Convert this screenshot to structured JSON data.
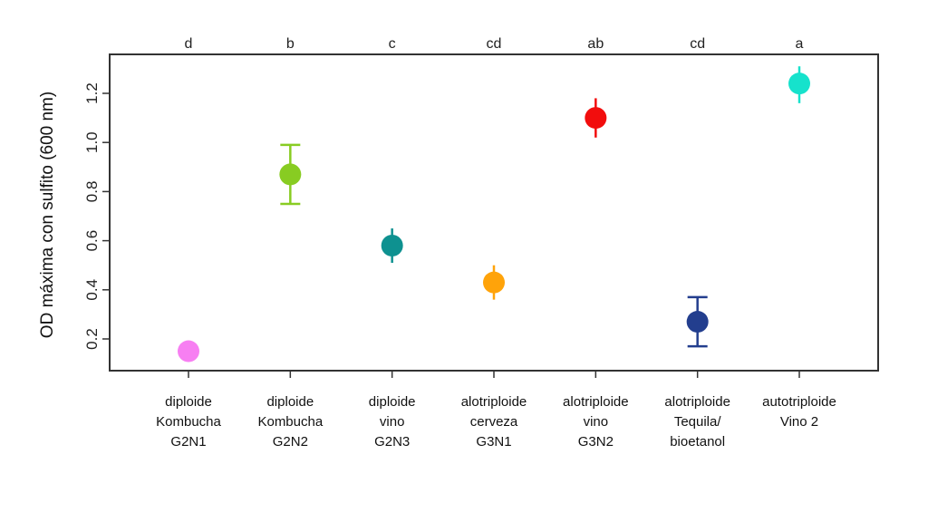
{
  "chart_data": {
    "type": "scatter",
    "title": "",
    "xlabel": "",
    "ylabel": "OD máxima con sulfito (600 nm)",
    "ylim": [
      0.08,
      1.37
    ],
    "yticks": [
      0.2,
      0.4,
      0.6,
      0.8,
      1.0,
      1.2
    ],
    "ytick_labels": [
      "0.2",
      "0.4",
      "0.6",
      "0.8",
      "1.0",
      "1.2"
    ],
    "grid": false,
    "legend": "none",
    "points": [
      {
        "category": [
          "diploide",
          "Kombucha",
          "G2N1"
        ],
        "value": 0.15,
        "err_low": 0.15,
        "err_high": 0.15,
        "color": "#f77ff2",
        "group_letter": "d"
      },
      {
        "category": [
          "diploide",
          "Kombucha",
          "G2N2"
        ],
        "value": 0.87,
        "err_low": 0.75,
        "err_high": 0.99,
        "color": "#88cc22",
        "group_letter": "b"
      },
      {
        "category": [
          "diploide",
          "vino",
          "G2N3"
        ],
        "value": 0.58,
        "err_low": 0.51,
        "err_high": 0.65,
        "color": "#0e9190",
        "group_letter": "c"
      },
      {
        "category": [
          "alotriploide",
          "cerveza",
          "G3N1"
        ],
        "value": 0.43,
        "err_low": 0.36,
        "err_high": 0.5,
        "color": "#ffa30a",
        "group_letter": "cd"
      },
      {
        "category": [
          "alotriploide",
          "vino",
          "G3N2"
        ],
        "value": 1.1,
        "err_low": 1.02,
        "err_high": 1.18,
        "color": "#f20d0d",
        "group_letter": "ab"
      },
      {
        "category": [
          "alotriploide",
          "Tequila/",
          "bioetanol"
        ],
        "value": 0.27,
        "err_low": 0.17,
        "err_high": 0.37,
        "color": "#233e8e",
        "group_letter": "cd"
      },
      {
        "category": [
          "autotriploide",
          "Vino 2"
        ],
        "value": 1.24,
        "err_low": 1.16,
        "err_high": 1.31,
        "color": "#16e2cc",
        "group_letter": "a"
      }
    ]
  }
}
